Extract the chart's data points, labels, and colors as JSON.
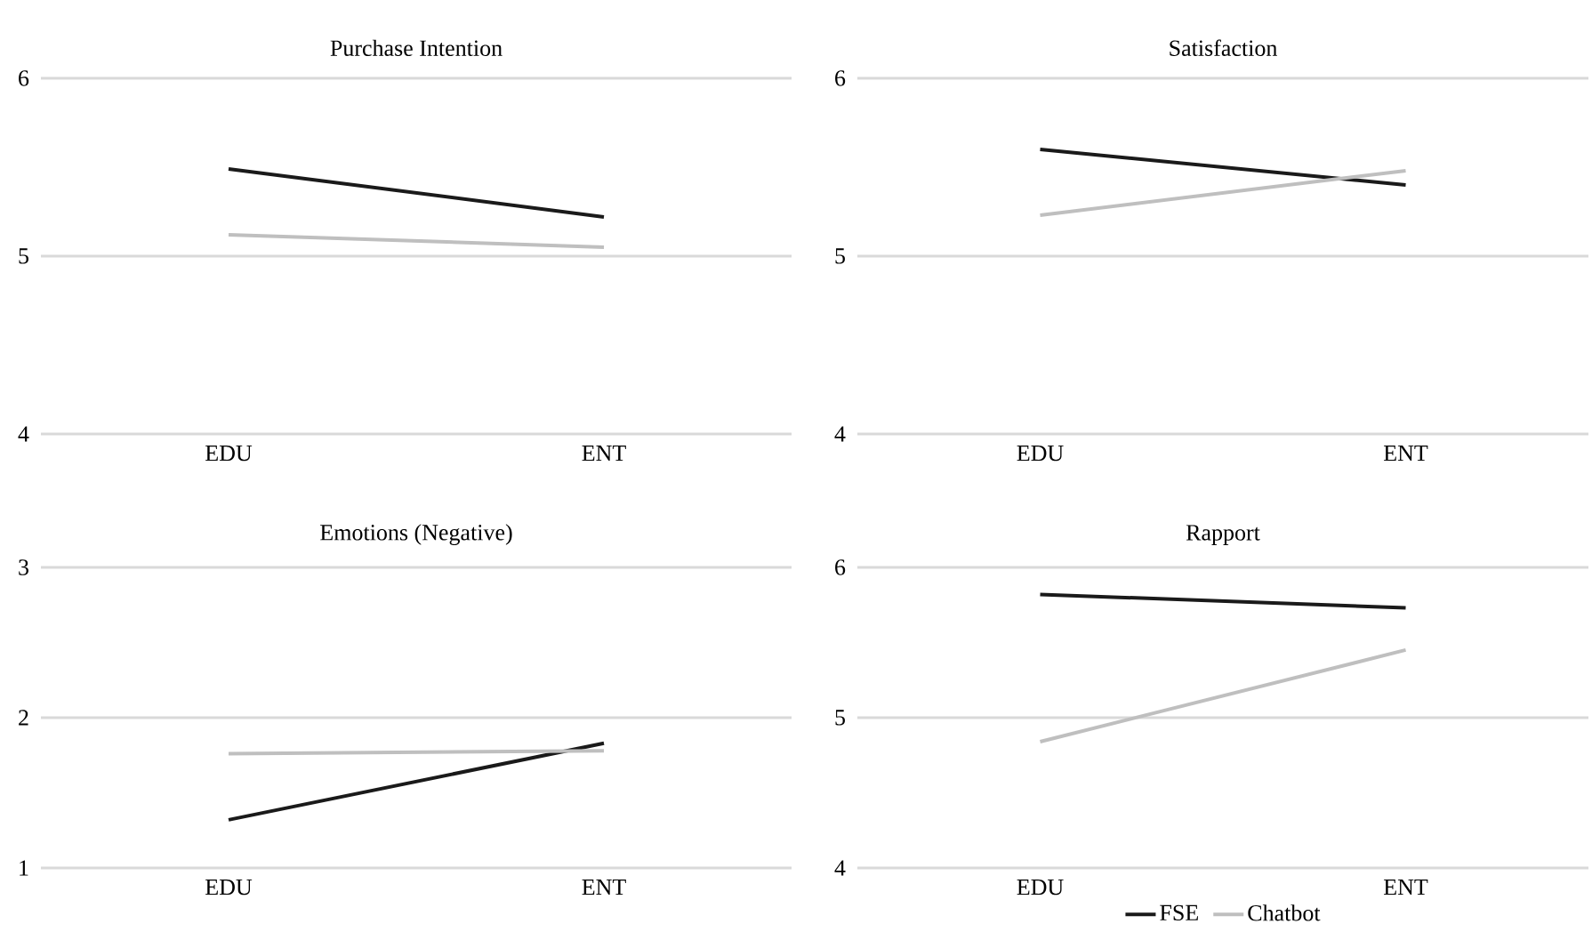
{
  "chart_data": [
    {
      "type": "line",
      "title": "Purchase Intention",
      "categories": [
        "EDU",
        "ENT"
      ],
      "ylim": [
        4,
        6
      ],
      "yticks": [
        4,
        5,
        6
      ],
      "grid": "y",
      "series": [
        {
          "color": "#1a1a1a",
          "values": [
            5.49,
            5.22
          ]
        },
        {
          "color": "#bfbfbf",
          "values": [
            5.12,
            5.05
          ]
        }
      ]
    },
    {
      "type": "line",
      "title": "Satisfaction",
      "categories": [
        "EDU",
        "ENT"
      ],
      "ylim": [
        4,
        6
      ],
      "yticks": [
        4,
        5,
        6
      ],
      "grid": "y",
      "series": [
        {
          "color": "#1a1a1a",
          "values": [
            5.6,
            5.4
          ]
        },
        {
          "color": "#bfbfbf",
          "values": [
            5.23,
            5.48
          ]
        }
      ]
    },
    {
      "type": "line",
      "title": "Emotions (Negative)",
      "categories": [
        "EDU",
        "ENT"
      ],
      "ylim": [
        1,
        3
      ],
      "yticks": [
        1,
        2,
        3
      ],
      "grid": "y",
      "series": [
        {
          "color": "#1a1a1a",
          "values": [
            1.32,
            1.83
          ]
        },
        {
          "color": "#bfbfbf",
          "values": [
            1.76,
            1.78
          ]
        }
      ]
    },
    {
      "type": "line",
      "title": "Rapport",
      "categories": [
        "EDU",
        "ENT"
      ],
      "ylim": [
        4,
        6
      ],
      "yticks": [
        4,
        5,
        6
      ],
      "grid": "y",
      "legend": "bottom",
      "series": [
        {
          "name": "FSE",
          "color": "#1a1a1a",
          "values": [
            5.82,
            5.73
          ]
        },
        {
          "name": "Chatbot",
          "color": "#bfbfbf",
          "values": [
            4.84,
            5.45
          ]
        }
      ]
    }
  ]
}
